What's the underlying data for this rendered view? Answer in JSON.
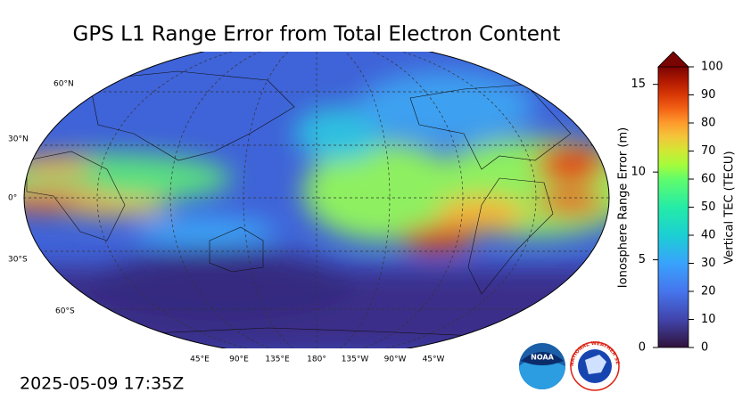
{
  "title": "GPS L1 Range Error from Total Electron Content",
  "timestamp": "2025-05-09 17:35Z",
  "map": {
    "lat_labels": [
      "60°N",
      "30°N",
      "0°",
      "30°S",
      "60°S"
    ],
    "lon_labels": [
      "45°E",
      "90°E",
      "135°E",
      "180°",
      "135°W",
      "90°W",
      "45°W"
    ]
  },
  "colorbar": {
    "range_error": {
      "label": "Ionosphere Range Error (m)",
      "lim": [
        0,
        16
      ],
      "ticks": [
        0,
        5,
        10,
        15
      ]
    },
    "tec": {
      "label": "Vertical TEC (TECU)",
      "lim": [
        0,
        100
      ],
      "ticks": [
        0,
        10,
        20,
        30,
        40,
        50,
        60,
        70,
        80,
        90,
        100
      ]
    }
  },
  "logos": {
    "noaa": "NOAA",
    "nws": "NATIONAL WEATHER SERVICE"
  }
}
